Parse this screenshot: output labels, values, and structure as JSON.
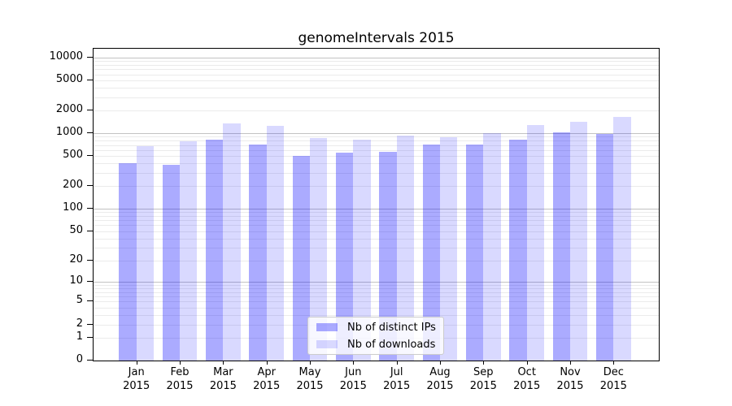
{
  "chart_data": {
    "type": "bar",
    "title": "genomeIntervals 2015",
    "categories": [
      "Jan",
      "Feb",
      "Mar",
      "Apr",
      "May",
      "Jun",
      "Jul",
      "Aug",
      "Sep",
      "Oct",
      "Nov",
      "Dec"
    ],
    "x_year_label": "2015",
    "series": [
      {
        "name": "Nb of distinct IPs",
        "color": "#0000FF54",
        "values": [
          405,
          385,
          820,
          710,
          505,
          550,
          570,
          710,
          710,
          825,
          1020,
          970
        ]
      },
      {
        "name": "Nb of downloads",
        "color": "#0000FF26",
        "values": [
          670,
          785,
          1350,
          1240,
          855,
          820,
          940,
          890,
          1005,
          1270,
          1420,
          1630
        ]
      }
    ],
    "y_axis": {
      "scale": "log10(value+1)",
      "tick_values": [
        0,
        1,
        2,
        5,
        10,
        20,
        50,
        100,
        200,
        500,
        1000,
        2000,
        5000,
        10000
      ],
      "ylim": [
        0,
        13000
      ]
    },
    "grid": "on",
    "legend_position": "lower center",
    "colors": {
      "axis": "#000000",
      "major_grid": "#C2C2C2",
      "minor_grid": "#EBEBEB",
      "background": "#FFFFFF"
    }
  }
}
